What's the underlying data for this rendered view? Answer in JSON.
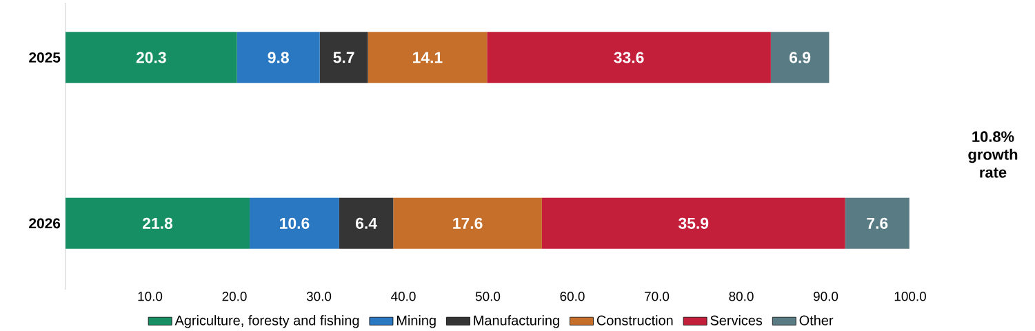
{
  "chart_data": {
    "type": "bar",
    "orientation": "horizontal",
    "stacked": true,
    "data_labels": true,
    "legend": "bottom",
    "categories": [
      "2025",
      "2026"
    ],
    "series": [
      {
        "name": "Agriculture, foresty and fishing",
        "color": "#178f64",
        "values": [
          20.3,
          21.8
        ]
      },
      {
        "name": "Mining",
        "color": "#2a78c2",
        "values": [
          9.8,
          10.6
        ]
      },
      {
        "name": "Manufacturing",
        "color": "#353535",
        "values": [
          5.7,
          6.4
        ]
      },
      {
        "name": "Construction",
        "color": "#c66f2a",
        "values": [
          14.1,
          17.6
        ]
      },
      {
        "name": "Services",
        "color": "#c41f3a",
        "values": [
          33.6,
          35.9
        ]
      },
      {
        "name": "Other",
        "color": "#587b84",
        "values": [
          6.9,
          7.6
        ]
      }
    ],
    "xlim": [
      0,
      100
    ],
    "xticks": [
      {
        "value": 10,
        "label": "10.0"
      },
      {
        "value": 20,
        "label": "20.0"
      },
      {
        "value": 30,
        "label": "30.0"
      },
      {
        "value": 40,
        "label": "40.0"
      },
      {
        "value": 50,
        "label": "50.0"
      },
      {
        "value": 60,
        "label": "60.0"
      },
      {
        "value": 70,
        "label": "70.0"
      },
      {
        "value": 80,
        "label": "80.0"
      },
      {
        "value": 90,
        "label": "90.0"
      },
      {
        "value": 100,
        "label": "100.0"
      }
    ],
    "annotations": [
      "10.8% growth rate"
    ]
  }
}
